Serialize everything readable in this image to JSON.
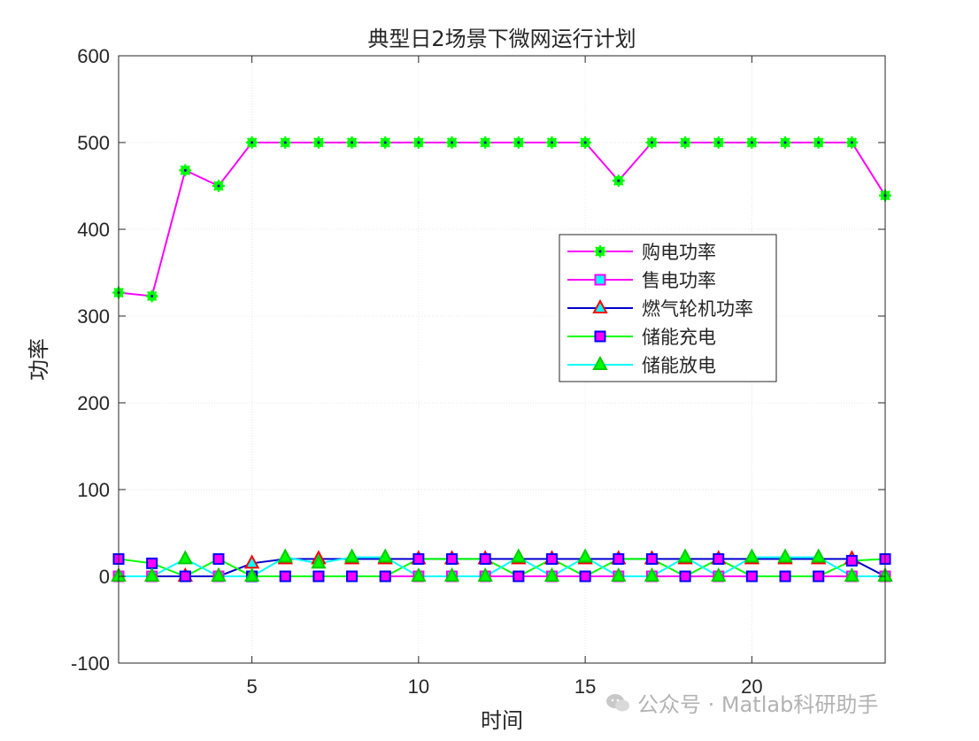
{
  "chart_data": {
    "type": "line",
    "title": "典型日2场景下微网运行计划",
    "xlabel": "时间",
    "ylabel": "功率",
    "xlim": [
      1,
      24
    ],
    "ylim": [
      -100,
      600
    ],
    "xticks": [
      5,
      10,
      15,
      20
    ],
    "yticks": [
      -100,
      0,
      100,
      200,
      300,
      400,
      500,
      600
    ],
    "grid": true,
    "legend_position": "right-middle",
    "x": [
      1,
      2,
      3,
      4,
      5,
      6,
      7,
      8,
      9,
      10,
      11,
      12,
      13,
      14,
      15,
      16,
      17,
      18,
      19,
      20,
      21,
      22,
      23,
      24
    ],
    "series": [
      {
        "name": "购电功率",
        "values": [
          327,
          323,
          468,
          450,
          500,
          500,
          500,
          500,
          500,
          500,
          500,
          500,
          500,
          500,
          500,
          456,
          500,
          500,
          500,
          500,
          500,
          500,
          500,
          439
        ],
        "line_color": "#ff00ff",
        "marker": "star",
        "marker_face": "#00ff00",
        "marker_edge": "#00ff00"
      },
      {
        "name": "售电功率",
        "values": [
          0,
          0,
          0,
          0,
          0,
          0,
          0,
          0,
          0,
          0,
          0,
          0,
          0,
          0,
          0,
          0,
          0,
          0,
          0,
          0,
          0,
          0,
          0,
          0
        ],
        "line_color": "#ff00ff",
        "marker": "square",
        "marker_face": "#00ffff",
        "marker_edge": "#ff00ff"
      },
      {
        "name": "燃气轮机功率",
        "values": [
          0,
          0,
          0,
          0,
          15,
          20,
          20,
          20,
          20,
          20,
          20,
          20,
          20,
          20,
          20,
          20,
          20,
          20,
          20,
          20,
          20,
          20,
          20,
          0
        ],
        "line_color": "#0000cd",
        "marker": "triangle",
        "marker_face": "#00ffff",
        "marker_edge": "#ff0000"
      },
      {
        "name": "储能充电",
        "values": [
          20,
          15,
          0,
          20,
          0,
          0,
          0,
          0,
          0,
          20,
          20,
          20,
          0,
          20,
          0,
          20,
          20,
          0,
          20,
          0,
          0,
          0,
          18,
          20
        ],
        "line_color": "#00ff00",
        "marker": "square",
        "marker_face": "#ff00ff",
        "marker_edge": "#0000ff"
      },
      {
        "name": "储能放电",
        "values": [
          0,
          0,
          20,
          0,
          0,
          22,
          15,
          22,
          22,
          0,
          0,
          0,
          22,
          0,
          22,
          0,
          0,
          22,
          0,
          22,
          22,
          22,
          0,
          0
        ],
        "line_color": "#00ffff",
        "marker": "triangle",
        "marker_face": "#00ff00",
        "marker_edge": "#00cc00"
      }
    ]
  },
  "watermark": {
    "text": "公众号 · Matlab科研助手"
  }
}
